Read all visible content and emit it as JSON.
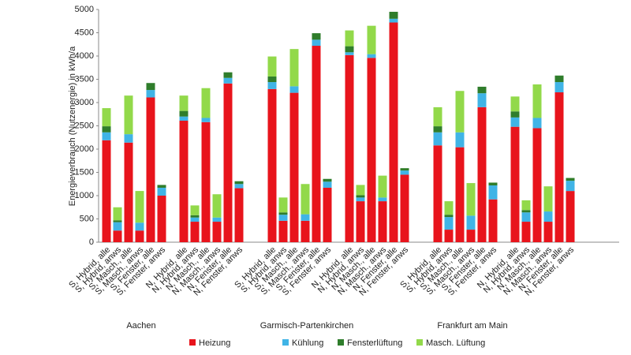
{
  "chart_data": {
    "type": "stacked_bar",
    "y_label": "Energieverbrauch (Nutzenergie) in kWh/a",
    "groups": [
      "Aachen",
      "Garmisch-Partenkirchen",
      "Frankfurt am Main"
    ],
    "categories": [
      "S, Hybrid, alle",
      "S, Hybrid, anws",
      "S, Masch., alle",
      "S, Masch., anws",
      "S, Fenster, alle",
      "S, Fenster, anws",
      "N, Hybrid, alle",
      "N, Hybrid, anws",
      "N, Masch., alle",
      "N, Masch., anws",
      "N, Fenster, alle",
      "N, Fenster, anws",
      "S, Hybrid, alle",
      "S, Hybrid, anws",
      "S, Masch., alle",
      "S, Masch., anws",
      "S, Fenster, alle",
      "S, Fenster, anws",
      "N, Hybrid, alle",
      "N, Hybrid, anws",
      "N, Masch., alle",
      "N, Masch., anws",
      "N, Fenster, alle",
      "N, Fenster, anws",
      "S, Hybrid, alle",
      "S, Hybrid, anws",
      "S, Masch., alle",
      "S, Masch., anws",
      "S, Fenster, alle",
      "S, Fenster, anws",
      "N, Hybrid, alle",
      "N, Hybrid, anws",
      "N, Masch., alle",
      "N, Masch., anws",
      "N, Fenster, alle",
      "N, Fenster, anws"
    ],
    "series": [
      {
        "name": "Heizung",
        "color": "#e8141c",
        "values": [
          2190,
          250,
          2140,
          250,
          3110,
          1000,
          2610,
          440,
          2580,
          440,
          3410,
          1160,
          3290,
          460,
          3210,
          460,
          4220,
          1170,
          4020,
          880,
          3960,
          880,
          4720,
          1450,
          2080,
          270,
          2040,
          270,
          2900,
          920,
          2480,
          440,
          2450,
          440,
          3220,
          1100
        ]
      },
      {
        "name": "Kühlung",
        "color": "#40b4e6",
        "values": [
          170,
          180,
          180,
          170,
          160,
          170,
          90,
          90,
          90,
          90,
          120,
          90,
          150,
          130,
          140,
          140,
          130,
          130,
          60,
          80,
          80,
          80,
          80,
          90,
          280,
          270,
          320,
          300,
          300,
          300,
          200,
          200,
          220,
          220,
          220,
          220
        ]
      },
      {
        "name": "Fensterlüftung",
        "color": "#2f7d2b",
        "values": [
          130,
          40,
          0,
          0,
          150,
          60,
          120,
          50,
          0,
          0,
          120,
          60,
          120,
          50,
          0,
          0,
          140,
          60,
          130,
          50,
          0,
          0,
          150,
          50,
          130,
          50,
          0,
          0,
          140,
          60,
          130,
          50,
          0,
          0,
          140,
          60
        ]
      },
      {
        "name": "Masch. Lüftung",
        "color": "#92d94a",
        "values": [
          390,
          280,
          830,
          680,
          0,
          0,
          330,
          210,
          640,
          500,
          0,
          0,
          430,
          320,
          800,
          650,
          0,
          0,
          340,
          220,
          610,
          470,
          0,
          0,
          410,
          290,
          890,
          700,
          0,
          0,
          320,
          210,
          720,
          540,
          0,
          0
        ]
      }
    ],
    "ylim": [
      0,
      5000
    ],
    "yticks": [
      0,
      500,
      1000,
      1500,
      2000,
      2500,
      3000,
      3500,
      4000,
      4500,
      5000
    ],
    "grid": false
  }
}
